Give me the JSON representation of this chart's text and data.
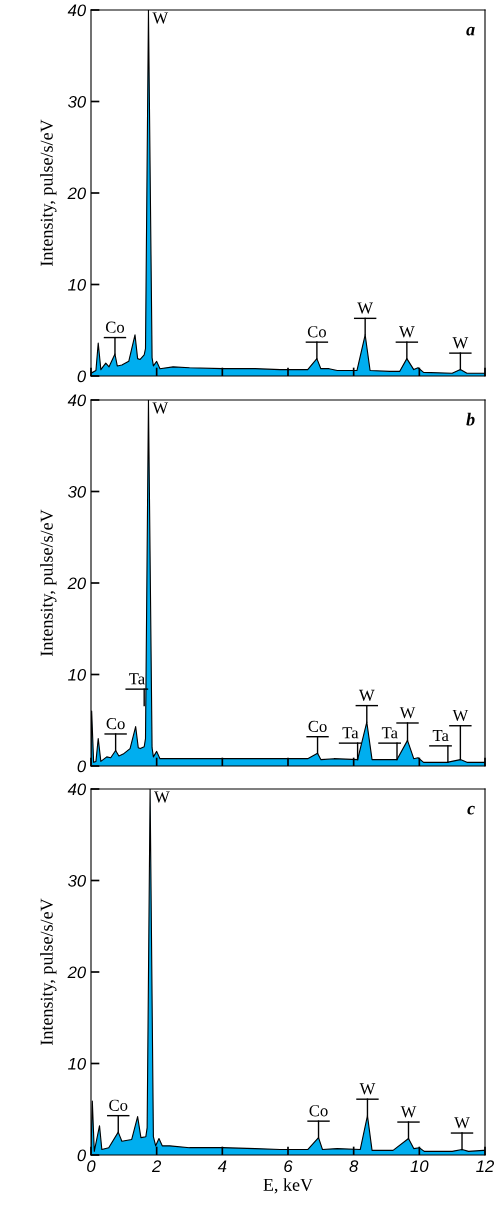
{
  "chart_data": [
    {
      "type": "area",
      "ylabel": "Intensity, pulse/s/eV",
      "xlim": [
        0,
        12
      ],
      "ylim": [
        0,
        40
      ],
      "xticks": [
        0,
        2,
        4,
        6,
        8,
        10,
        12
      ],
      "yticks": [
        0,
        10,
        20,
        30,
        40
      ],
      "tick_labels": "y",
      "grid": false,
      "series": [
        {
          "color": "#00aeef",
          "x": [
            0.0,
            0.15,
            0.22,
            0.3,
            0.45,
            0.55,
            0.73,
            0.8,
            0.94,
            1.15,
            1.34,
            1.42,
            1.49,
            1.62,
            1.66,
            1.75,
            1.86,
            1.9,
            2.0,
            2.1,
            2.5,
            3.0,
            4.0,
            5.0,
            5.76,
            6.6,
            6.88,
            7.0,
            7.25,
            7.5,
            8.1,
            8.35,
            8.5,
            9.1,
            9.4,
            9.62,
            9.83,
            9.96,
            10.13,
            11.0,
            11.25,
            11.45,
            11.95,
            12.0
          ],
          "values": [
            0.3,
            0.6,
            3.6,
            0.7,
            1.4,
            1.0,
            2.4,
            1.1,
            1.2,
            1.6,
            4.5,
            1.9,
            1.8,
            2.3,
            3.0,
            40,
            2.0,
            1.1,
            1.6,
            0.8,
            1.0,
            0.9,
            0.8,
            0.8,
            0.7,
            0.7,
            1.9,
            0.8,
            0.8,
            0.6,
            0.6,
            4.5,
            0.6,
            0.5,
            0.5,
            1.9,
            0.7,
            0.9,
            0.4,
            0.3,
            0.7,
            0.3,
            0.3,
            0.3
          ]
        }
      ],
      "annotations": [
        "a",
        {
          "text": "W",
          "x": 1.75,
          "y": 40
        },
        {
          "text": "Co",
          "x": 0.73,
          "y": 2.4
        },
        {
          "text": "Co",
          "x": 6.88,
          "y": 1.9
        },
        {
          "text": "W",
          "x": 8.35,
          "y": 4.5
        },
        {
          "text": "W",
          "x": 9.62,
          "y": 1.9
        },
        {
          "text": "W",
          "x": 11.25,
          "y": 0.7
        }
      ]
    },
    {
      "type": "area",
      "ylabel": "Intensity, pulse/s/eV",
      "xlim": [
        0,
        12
      ],
      "ylim": [
        0,
        40
      ],
      "xticks": [
        0,
        2,
        4,
        6,
        8,
        10,
        12
      ],
      "yticks": [
        0,
        10,
        20,
        30,
        40
      ],
      "tick_labels": "y",
      "grid": false,
      "series": [
        {
          "color": "#00aeef",
          "x": [
            0.0,
            0.02,
            0.08,
            0.15,
            0.22,
            0.3,
            0.48,
            0.6,
            0.75,
            0.85,
            0.98,
            1.19,
            1.36,
            1.44,
            1.5,
            1.62,
            1.66,
            1.75,
            1.86,
            1.9,
            2.0,
            2.1,
            3.0,
            4.0,
            5.0,
            5.76,
            6.6,
            6.9,
            7.0,
            7.4,
            8.12,
            8.4,
            8.56,
            9.32,
            9.64,
            9.83,
            9.96,
            10.13,
            10.84,
            11.25,
            11.45,
            11.95,
            12.0
          ],
          "values": [
            0.3,
            6.0,
            0.4,
            0.5,
            3.0,
            0.5,
            1.0,
            0.9,
            1.7,
            1.1,
            1.3,
            1.9,
            4.3,
            2.0,
            1.9,
            2.1,
            3.0,
            40,
            2.0,
            1.0,
            1.6,
            0.8,
            0.8,
            0.8,
            0.8,
            0.8,
            0.8,
            1.4,
            0.7,
            0.8,
            0.7,
            4.8,
            0.7,
            0.7,
            2.8,
            0.8,
            0.9,
            0.4,
            0.4,
            0.7,
            0.4,
            0.4,
            0.4
          ]
        }
      ],
      "annotations": [
        "b",
        {
          "text": "W",
          "x": 1.75,
          "y": 40
        },
        {
          "text": "Ta",
          "x": 1.62,
          "y": 6.6
        },
        {
          "text": "Co",
          "x": 0.75,
          "y": 1.7
        },
        {
          "text": "Co",
          "x": 6.9,
          "y": 1.4
        },
        {
          "text": "Ta",
          "x": 8.12,
          "y": 0.7
        },
        {
          "text": "W",
          "x": 8.4,
          "y": 4.8
        },
        {
          "text": "Ta",
          "x": 9.32,
          "y": 0.7
        },
        {
          "text": "W",
          "x": 9.64,
          "y": 2.8
        },
        {
          "text": "Ta",
          "x": 10.87,
          "y": 0.4
        },
        {
          "text": "W",
          "x": 11.25,
          "y": 0.7
        }
      ]
    },
    {
      "type": "area",
      "xlabel": "E, keV",
      "ylabel": "Intensity, pulse/s/eV",
      "xlim": [
        0,
        12
      ],
      "ylim": [
        0,
        40
      ],
      "xticks": [
        0,
        2,
        4,
        6,
        8,
        10,
        12
      ],
      "yticks": [
        0,
        10,
        20,
        30,
        40
      ],
      "grid": false,
      "series": [
        {
          "color": "#00aeef",
          "x": [
            0.0,
            0.04,
            0.1,
            0.26,
            0.33,
            0.54,
            0.83,
            0.94,
            1.24,
            1.42,
            1.52,
            1.67,
            1.71,
            1.8,
            1.9,
            1.97,
            2.07,
            2.17,
            2.4,
            3.0,
            4.0,
            5.0,
            5.76,
            6.6,
            6.93,
            7.05,
            7.5,
            8.2,
            8.42,
            8.56,
            9.2,
            9.67,
            9.83,
            10.0,
            10.15,
            11.0,
            11.3,
            11.5,
            11.95,
            12.0
          ],
          "values": [
            0.3,
            5.9,
            0.4,
            3.2,
            0.6,
            0.8,
            2.5,
            1.5,
            1.7,
            4.2,
            1.9,
            2.0,
            3.0,
            40,
            2.0,
            1.0,
            1.8,
            1.0,
            1.0,
            0.8,
            0.8,
            0.7,
            0.6,
            0.6,
            1.9,
            0.6,
            0.7,
            0.6,
            4.3,
            0.5,
            0.5,
            1.8,
            0.7,
            0.8,
            0.4,
            0.4,
            0.6,
            0.4,
            0.5,
            0.5
          ]
        }
      ],
      "annotations": [
        "c",
        {
          "text": "W",
          "x": 1.8,
          "y": 40
        },
        {
          "text": "Co",
          "x": 0.83,
          "y": 2.5
        },
        {
          "text": "Co",
          "x": 6.93,
          "y": 1.9
        },
        {
          "text": "W",
          "x": 8.42,
          "y": 4.3
        },
        {
          "text": "W",
          "x": 9.67,
          "y": 1.8
        },
        {
          "text": "W",
          "x": 11.3,
          "y": 0.6
        }
      ]
    }
  ]
}
